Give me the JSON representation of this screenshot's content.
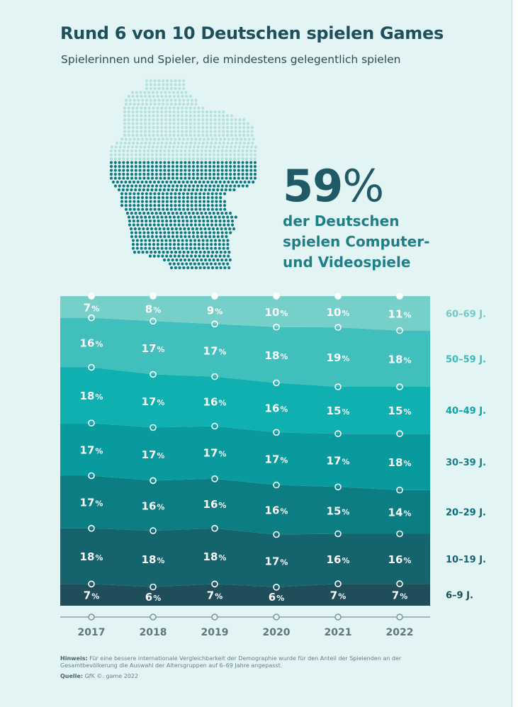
{
  "title": "Rund 6 von 10 Deutschen spielen Games",
  "subtitle": "Spielerinnen und Spieler, die mindestens gelegentlich spielen",
  "highlight": {
    "value_number": "59",
    "value_unit": "%",
    "lines": [
      "der Deutschen",
      "spielen Computer-",
      "und Videospiele"
    ]
  },
  "footnote": {
    "label": "Hinweis:",
    "text": "Für eine bessere internationale Vergleichbarkeit der Demographie wurde für den Anteil der Spielenden an der Gesamtbevölkerung die Auswahl der Altersgruppen auf 6–69 Jahre angepasst."
  },
  "source": {
    "label": "Quelle:",
    "text": "GfK ©. game 2022"
  },
  "chart_data": {
    "type": "area",
    "stacked": true,
    "x": [
      "2017",
      "2018",
      "2019",
      "2020",
      "2021",
      "2022"
    ],
    "value_suffix": "%",
    "series": [
      {
        "name": "6–9 J.",
        "values": [
          7,
          6,
          7,
          6,
          7,
          7
        ],
        "color": "#1f4e5a"
      },
      {
        "name": "10–19 J.",
        "values": [
          18,
          18,
          18,
          17,
          16,
          16
        ],
        "color": "#14636d"
      },
      {
        "name": "20–29 J.",
        "values": [
          17,
          16,
          16,
          16,
          15,
          14
        ],
        "color": "#0b7d83"
      },
      {
        "name": "30–39 J.",
        "values": [
          17,
          17,
          17,
          17,
          17,
          18
        ],
        "color": "#099a9e"
      },
      {
        "name": "40–49 J.",
        "values": [
          18,
          17,
          16,
          16,
          15,
          15
        ],
        "color": "#10b0b1"
      },
      {
        "name": "50–59 J.",
        "values": [
          16,
          17,
          17,
          18,
          19,
          18
        ],
        "color": "#40bfbd"
      },
      {
        "name": "60–69 J.",
        "values": [
          7,
          8,
          9,
          10,
          10,
          11
        ],
        "color": "#77cfca"
      }
    ],
    "legend_placement": "right",
    "legend_colors": [
      "#1f4e5a",
      "#14636d",
      "#0e6a73",
      "#1b7f85",
      "#0ea4a6",
      "#41b9b5",
      "#76c9c4"
    ],
    "ylim": [
      0,
      100
    ],
    "grid": false
  }
}
